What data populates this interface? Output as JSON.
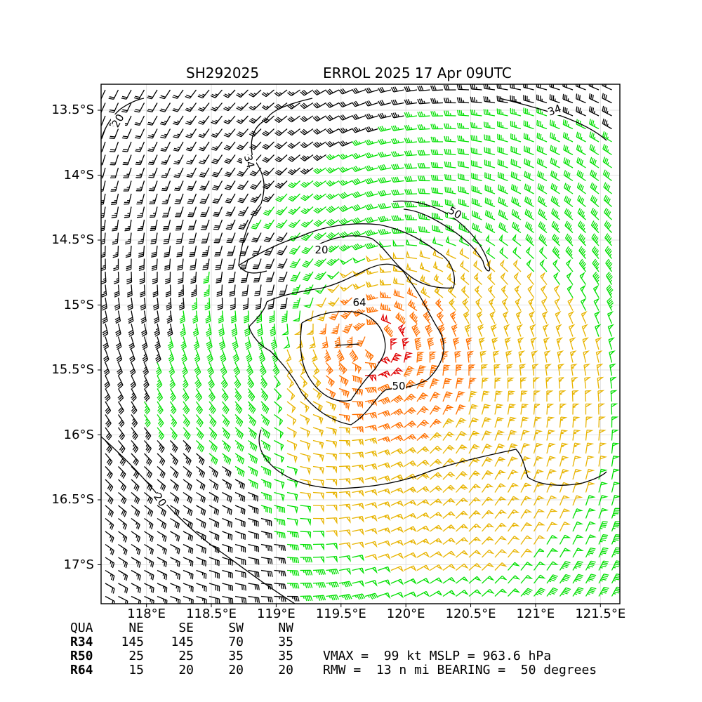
{
  "title": {
    "left": "SH292025",
    "right": "ERROL 2025 17 Apr 09UTC"
  },
  "map": {
    "lon_range": [
      117.65,
      121.65
    ],
    "lat_range": [
      -17.3,
      -13.3
    ],
    "center": {
      "lon": 119.75,
      "lat": -15.3
    },
    "lat_ticks": [
      "13.5°S",
      "14°S",
      "14.5°S",
      "15°S",
      "15.5°S",
      "16°S",
      "16.5°S",
      "17°S"
    ],
    "lat_values": [
      -13.5,
      -14.0,
      -14.5,
      -15.0,
      -15.5,
      -16.0,
      -16.5,
      -17.0
    ],
    "lon_ticks": [
      "118°E",
      "118.5°E",
      "119°E",
      "119.5°E",
      "120°E",
      "120.5°E",
      "121°E",
      "121.5°E"
    ],
    "lon_values": [
      118.0,
      118.5,
      119.0,
      119.5,
      120.0,
      120.5,
      121.0,
      121.5
    ],
    "contour_labels": [
      "34",
      "34",
      "20",
      "20",
      "20",
      "50",
      "50",
      "64"
    ],
    "barb_colors": {
      "below_34": "#000000",
      "34_to_50": "#00e000",
      "50_to_64": "#e8b400",
      "64_to_99": "#ff7000",
      "above_99": "#e00000"
    }
  },
  "quadrants": {
    "header": [
      "QUA",
      "NE",
      "SE",
      "SW",
      "NW"
    ],
    "rows": [
      {
        "label": "R34",
        "values": [
          "145",
          "145",
          "70",
          "35"
        ]
      },
      {
        "label": "R50",
        "values": [
          "25",
          "25",
          "35",
          "35"
        ]
      },
      {
        "label": "R64",
        "values": [
          "15",
          "20",
          "20",
          "20"
        ]
      }
    ]
  },
  "stats": {
    "line1": "VMAX =  99 kt MSLP = 963.6 hPa",
    "line2": "RMW =  13 n mi BEARING =  50 degrees"
  }
}
